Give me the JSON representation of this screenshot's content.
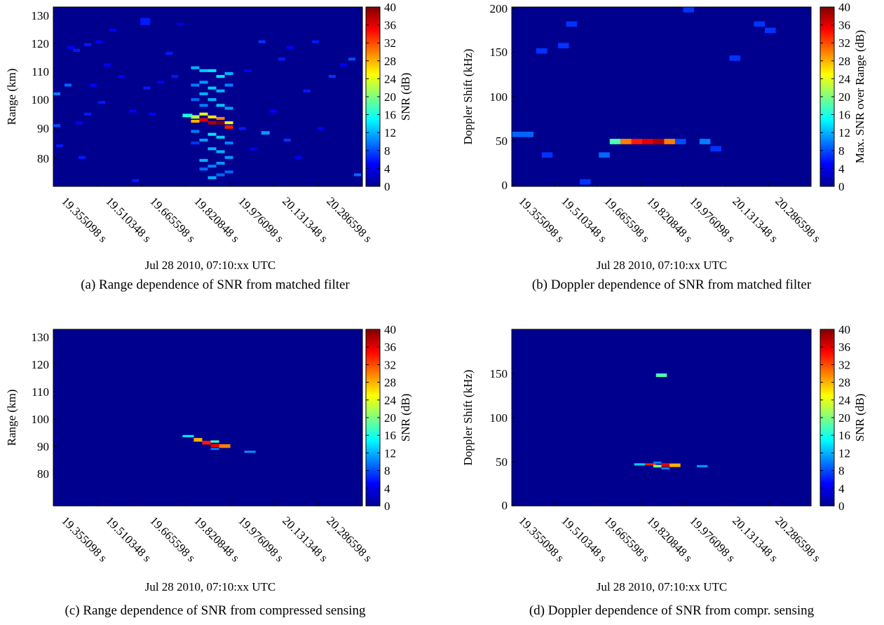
{
  "figure": {
    "colorbar_ticks": [
      "0",
      "4",
      "8",
      "12",
      "16",
      "20",
      "24",
      "28",
      "32",
      "36",
      "40"
    ],
    "colormap": [
      "#00008f",
      "#0000ff",
      "#007fff",
      "#00ffff",
      "#7fff7f",
      "#ffff00",
      "#ff7f00",
      "#ff0000",
      "#7f0000"
    ],
    "background_color": "#00008f"
  },
  "chart_data": [
    {
      "type": "heatmap",
      "caption": "(a) Range dependence of SNR from matched filter",
      "xlabel": "Jul 28 2010, 07:10:xx UTC",
      "ylabel": "Range (km)",
      "colorbar_label": "SNR (dB)",
      "x_ticks": [
        "19.355098 s",
        "19.510348 s",
        "19.665598 s",
        "19.820848 s",
        "19.976098 s",
        "20.131348 s",
        "20.286598 s"
      ],
      "y_ticks": [
        "80",
        "90",
        "100",
        "110",
        "120",
        "130"
      ],
      "xlim": [
        19.2,
        20.3
      ],
      "ylim": [
        70,
        132
      ],
      "clim": [
        0,
        40
      ],
      "cells": [
        {
          "x": 19.2,
          "y": 102,
          "w": 0.025,
          "h": 1.0,
          "v": 10
        },
        {
          "x": 19.2,
          "y": 91,
          "w": 0.025,
          "h": 1.0,
          "v": 8
        },
        {
          "x": 19.21,
          "y": 84,
          "w": 0.025,
          "h": 1.0,
          "v": 6
        },
        {
          "x": 19.24,
          "y": 105,
          "w": 0.025,
          "h": 1.0,
          "v": 9
        },
        {
          "x": 19.25,
          "y": 118,
          "w": 0.025,
          "h": 1.0,
          "v": 5
        },
        {
          "x": 19.27,
          "y": 117,
          "w": 0.025,
          "h": 1.0,
          "v": 6
        },
        {
          "x": 19.28,
          "y": 92,
          "w": 0.025,
          "h": 1.0,
          "v": 5
        },
        {
          "x": 19.29,
          "y": 80,
          "w": 0.025,
          "h": 1.0,
          "v": 6
        },
        {
          "x": 19.31,
          "y": 119,
          "w": 0.025,
          "h": 1.0,
          "v": 6
        },
        {
          "x": 19.31,
          "y": 95,
          "w": 0.025,
          "h": 1.0,
          "v": 6
        },
        {
          "x": 19.33,
          "y": 105,
          "w": 0.025,
          "h": 1.0,
          "v": 5
        },
        {
          "x": 19.35,
          "y": 120,
          "w": 0.025,
          "h": 1.0,
          "v": 5
        },
        {
          "x": 19.36,
          "y": 99,
          "w": 0.025,
          "h": 1.0,
          "v": 6
        },
        {
          "x": 19.38,
          "y": 112,
          "w": 0.025,
          "h": 1.0,
          "v": 5
        },
        {
          "x": 19.4,
          "y": 124,
          "w": 0.025,
          "h": 1.0,
          "v": 5
        },
        {
          "x": 19.43,
          "y": 108,
          "w": 0.025,
          "h": 1.0,
          "v": 5
        },
        {
          "x": 19.47,
          "y": 96,
          "w": 0.025,
          "h": 1.0,
          "v": 5
        },
        {
          "x": 19.48,
          "y": 72,
          "w": 0.025,
          "h": 1.0,
          "v": 6
        },
        {
          "x": 19.51,
          "y": 127,
          "w": 0.035,
          "h": 2.5,
          "v": 6
        },
        {
          "x": 19.52,
          "y": 104,
          "w": 0.025,
          "h": 1.0,
          "v": 6
        },
        {
          "x": 19.54,
          "y": 95,
          "w": 0.025,
          "h": 1.0,
          "v": 5
        },
        {
          "x": 19.57,
          "y": 106,
          "w": 0.025,
          "h": 1.0,
          "v": 5
        },
        {
          "x": 19.6,
          "y": 116,
          "w": 0.025,
          "h": 1.0,
          "v": 6
        },
        {
          "x": 19.62,
          "y": 108,
          "w": 0.025,
          "h": 1.0,
          "v": 6
        },
        {
          "x": 19.64,
          "y": 126,
          "w": 0.025,
          "h": 1.0,
          "v": 4
        },
        {
          "x": 19.66,
          "y": 94.5,
          "w": 0.035,
          "h": 1.2,
          "v": 16
        },
        {
          "x": 19.69,
          "y": 94,
          "w": 0.03,
          "h": 1.2,
          "v": 22
        },
        {
          "x": 19.69,
          "y": 92.5,
          "w": 0.03,
          "h": 1.0,
          "v": 28
        },
        {
          "x": 19.69,
          "y": 111,
          "w": 0.03,
          "h": 1.0,
          "v": 12
        },
        {
          "x": 19.69,
          "y": 105,
          "w": 0.03,
          "h": 1.0,
          "v": 10
        },
        {
          "x": 19.69,
          "y": 100,
          "w": 0.03,
          "h": 1.0,
          "v": 9
        },
        {
          "x": 19.69,
          "y": 89,
          "w": 0.03,
          "h": 1.0,
          "v": 10
        },
        {
          "x": 19.69,
          "y": 85,
          "w": 0.03,
          "h": 1.0,
          "v": 7
        },
        {
          "x": 19.72,
          "y": 93,
          "w": 0.03,
          "h": 1.2,
          "v": 36
        },
        {
          "x": 19.72,
          "y": 95,
          "w": 0.03,
          "h": 1.0,
          "v": 24
        },
        {
          "x": 19.72,
          "y": 110,
          "w": 0.03,
          "h": 1.0,
          "v": 13
        },
        {
          "x": 19.72,
          "y": 106,
          "w": 0.03,
          "h": 1.0,
          "v": 11
        },
        {
          "x": 19.72,
          "y": 102,
          "w": 0.03,
          "h": 1.0,
          "v": 12
        },
        {
          "x": 19.72,
          "y": 98,
          "w": 0.03,
          "h": 1.0,
          "v": 10
        },
        {
          "x": 19.72,
          "y": 86,
          "w": 0.03,
          "h": 1.0,
          "v": 11
        },
        {
          "x": 19.72,
          "y": 79,
          "w": 0.03,
          "h": 1.0,
          "v": 12
        },
        {
          "x": 19.72,
          "y": 76,
          "w": 0.03,
          "h": 1.0,
          "v": 9
        },
        {
          "x": 19.75,
          "y": 92,
          "w": 0.03,
          "h": 1.2,
          "v": 38
        },
        {
          "x": 19.75,
          "y": 94,
          "w": 0.03,
          "h": 1.0,
          "v": 26
        },
        {
          "x": 19.75,
          "y": 110,
          "w": 0.03,
          "h": 1.0,
          "v": 14
        },
        {
          "x": 19.75,
          "y": 104,
          "w": 0.03,
          "h": 1.0,
          "v": 13
        },
        {
          "x": 19.75,
          "y": 100,
          "w": 0.03,
          "h": 1.0,
          "v": 12
        },
        {
          "x": 19.75,
          "y": 88,
          "w": 0.03,
          "h": 1.0,
          "v": 14
        },
        {
          "x": 19.75,
          "y": 83,
          "w": 0.03,
          "h": 1.0,
          "v": 12
        },
        {
          "x": 19.75,
          "y": 77,
          "w": 0.03,
          "h": 1.0,
          "v": 10
        },
        {
          "x": 19.75,
          "y": 73,
          "w": 0.03,
          "h": 1.0,
          "v": 12
        },
        {
          "x": 19.78,
          "y": 92,
          "w": 0.03,
          "h": 1.2,
          "v": 40
        },
        {
          "x": 19.78,
          "y": 93.5,
          "w": 0.03,
          "h": 1.0,
          "v": 30
        },
        {
          "x": 19.78,
          "y": 108,
          "w": 0.03,
          "h": 1.0,
          "v": 14
        },
        {
          "x": 19.78,
          "y": 103,
          "w": 0.03,
          "h": 1.0,
          "v": 12
        },
        {
          "x": 19.78,
          "y": 98,
          "w": 0.03,
          "h": 1.0,
          "v": 13
        },
        {
          "x": 19.78,
          "y": 87,
          "w": 0.03,
          "h": 1.0,
          "v": 13
        },
        {
          "x": 19.78,
          "y": 82,
          "w": 0.03,
          "h": 1.0,
          "v": 12
        },
        {
          "x": 19.78,
          "y": 78,
          "w": 0.03,
          "h": 1.0,
          "v": 11
        },
        {
          "x": 19.78,
          "y": 74,
          "w": 0.03,
          "h": 1.0,
          "v": 9
        },
        {
          "x": 19.81,
          "y": 90.5,
          "w": 0.03,
          "h": 1.2,
          "v": 34
        },
        {
          "x": 19.81,
          "y": 92,
          "w": 0.03,
          "h": 1.0,
          "v": 24
        },
        {
          "x": 19.81,
          "y": 109,
          "w": 0.03,
          "h": 1.0,
          "v": 12
        },
        {
          "x": 19.81,
          "y": 105,
          "w": 0.03,
          "h": 1.0,
          "v": 10
        },
        {
          "x": 19.81,
          "y": 97,
          "w": 0.03,
          "h": 1.0,
          "v": 11
        },
        {
          "x": 19.81,
          "y": 85,
          "w": 0.03,
          "h": 1.0,
          "v": 10
        },
        {
          "x": 19.81,
          "y": 80,
          "w": 0.03,
          "h": 1.0,
          "v": 11
        },
        {
          "x": 19.81,
          "y": 75,
          "w": 0.03,
          "h": 1.0,
          "v": 9
        },
        {
          "x": 19.86,
          "y": 90,
          "w": 0.025,
          "h": 1.0,
          "v": 6
        },
        {
          "x": 19.88,
          "y": 110,
          "w": 0.025,
          "h": 1.0,
          "v": 5
        },
        {
          "x": 19.9,
          "y": 83,
          "w": 0.025,
          "h": 1.0,
          "v": 5
        },
        {
          "x": 19.93,
          "y": 120,
          "w": 0.025,
          "h": 1.0,
          "v": 7
        },
        {
          "x": 19.94,
          "y": 88.5,
          "w": 0.03,
          "h": 1.2,
          "v": 11
        },
        {
          "x": 19.97,
          "y": 96,
          "w": 0.025,
          "h": 1.0,
          "v": 5
        },
        {
          "x": 20.0,
          "y": 114,
          "w": 0.025,
          "h": 1.0,
          "v": 6
        },
        {
          "x": 20.02,
          "y": 86,
          "w": 0.025,
          "h": 1.0,
          "v": 7
        },
        {
          "x": 20.03,
          "y": 118,
          "w": 0.025,
          "h": 1.0,
          "v": 5
        },
        {
          "x": 20.06,
          "y": 80,
          "w": 0.025,
          "h": 1.0,
          "v": 5
        },
        {
          "x": 20.09,
          "y": 103,
          "w": 0.025,
          "h": 1.0,
          "v": 6
        },
        {
          "x": 20.12,
          "y": 120,
          "w": 0.025,
          "h": 1.0,
          "v": 6
        },
        {
          "x": 20.14,
          "y": 90,
          "w": 0.025,
          "h": 1.0,
          "v": 5
        },
        {
          "x": 20.18,
          "y": 108,
          "w": 0.025,
          "h": 1.0,
          "v": 7
        },
        {
          "x": 20.22,
          "y": 112,
          "w": 0.025,
          "h": 1.0,
          "v": 5
        },
        {
          "x": 20.25,
          "y": 114,
          "w": 0.025,
          "h": 1.0,
          "v": 8
        },
        {
          "x": 20.27,
          "y": 74,
          "w": 0.025,
          "h": 1.0,
          "v": 9
        }
      ]
    },
    {
      "type": "heatmap",
      "caption": "(b) Doppler dependence of SNR from matched filter",
      "xlabel": "Jul 28 2010, 07:10:xx UTC",
      "ylabel": "Doppler Shift (kHz)",
      "colorbar_label": "Max. SNR over Range (dB)",
      "x_ticks": [
        "19.355098 s",
        "19.510348 s",
        "19.665598 s",
        "19.820848 s",
        "19.976098 s",
        "20.131348 s",
        "20.286598 s"
      ],
      "y_ticks": [
        "0",
        "50",
        "100",
        "150",
        "200"
      ],
      "xlim": [
        19.2,
        20.3
      ],
      "ylim": [
        0,
        200
      ],
      "clim": [
        0,
        40
      ],
      "cells": [
        {
          "x": 19.2,
          "y": 58,
          "w": 0.04,
          "h": 6,
          "v": 9
        },
        {
          "x": 19.24,
          "y": 58,
          "w": 0.04,
          "h": 6,
          "v": 9
        },
        {
          "x": 19.29,
          "y": 151,
          "w": 0.04,
          "h": 6,
          "v": 7
        },
        {
          "x": 19.31,
          "y": 35,
          "w": 0.04,
          "h": 6,
          "v": 7
        },
        {
          "x": 19.37,
          "y": 157,
          "w": 0.04,
          "h": 6,
          "v": 7
        },
        {
          "x": 19.4,
          "y": 181,
          "w": 0.04,
          "h": 6,
          "v": 7
        },
        {
          "x": 19.45,
          "y": 5,
          "w": 0.04,
          "h": 6,
          "v": 7
        },
        {
          "x": 19.52,
          "y": 35,
          "w": 0.04,
          "h": 6,
          "v": 9
        },
        {
          "x": 19.56,
          "y": 50,
          "w": 0.04,
          "h": 6,
          "v": 18
        },
        {
          "x": 19.6,
          "y": 50,
          "w": 0.04,
          "h": 6,
          "v": 30
        },
        {
          "x": 19.64,
          "y": 50,
          "w": 0.04,
          "h": 6,
          "v": 34
        },
        {
          "x": 19.68,
          "y": 50,
          "w": 0.04,
          "h": 6,
          "v": 36
        },
        {
          "x": 19.72,
          "y": 50,
          "w": 0.04,
          "h": 6,
          "v": 38
        },
        {
          "x": 19.76,
          "y": 50,
          "w": 0.04,
          "h": 6,
          "v": 30
        },
        {
          "x": 19.8,
          "y": 50,
          "w": 0.04,
          "h": 6,
          "v": 8
        },
        {
          "x": 19.83,
          "y": 197,
          "w": 0.04,
          "h": 6,
          "v": 7
        },
        {
          "x": 19.89,
          "y": 50,
          "w": 0.04,
          "h": 6,
          "v": 10
        },
        {
          "x": 19.93,
          "y": 42,
          "w": 0.04,
          "h": 6,
          "v": 7
        },
        {
          "x": 20.0,
          "y": 143,
          "w": 0.04,
          "h": 6,
          "v": 7
        },
        {
          "x": 20.09,
          "y": 181,
          "w": 0.04,
          "h": 6,
          "v": 7
        },
        {
          "x": 20.13,
          "y": 174,
          "w": 0.04,
          "h": 6,
          "v": 7
        }
      ]
    },
    {
      "type": "heatmap",
      "caption": "(c) Range dependence of SNR from compressed sensing",
      "xlabel": "Jul 28 2010, 07:10:xx UTC",
      "ylabel": "Range (km)",
      "colorbar_label": "SNR (dB)",
      "x_ticks": [
        "19.355098 s",
        "19.510348 s",
        "19.665598 s",
        "19.820848 s",
        "19.976098 s",
        "20.131348 s",
        "20.286598 s"
      ],
      "y_ticks": [
        "80",
        "90",
        "100",
        "110",
        "120",
        "130"
      ],
      "xlim": [
        19.2,
        20.3
      ],
      "ylim": [
        70,
        132
      ],
      "clim": [
        0,
        40
      ],
      "cells": [
        {
          "x": 19.66,
          "y": 94.5,
          "w": 0.04,
          "h": 0.8,
          "v": 14
        },
        {
          "x": 19.7,
          "y": 93.2,
          "w": 0.03,
          "h": 1.3,
          "v": 28
        },
        {
          "x": 19.73,
          "y": 92.2,
          "w": 0.03,
          "h": 1.3,
          "v": 34
        },
        {
          "x": 19.76,
          "y": 92.6,
          "w": 0.03,
          "h": 0.8,
          "v": 18
        },
        {
          "x": 19.76,
          "y": 91.2,
          "w": 0.03,
          "h": 1.2,
          "v": 36
        },
        {
          "x": 19.76,
          "y": 90,
          "w": 0.03,
          "h": 0.7,
          "v": 10
        },
        {
          "x": 19.79,
          "y": 91,
          "w": 0.04,
          "h": 1.3,
          "v": 30
        },
        {
          "x": 19.88,
          "y": 89,
          "w": 0.04,
          "h": 0.7,
          "v": 11
        }
      ]
    },
    {
      "type": "heatmap",
      "caption": "(d) Doppler dependence of SNR from compr. sensing",
      "xlabel": "Jul 28 2010, 07:10:xx UTC",
      "ylabel": "Doppler Shift (kHz)",
      "colorbar_label": "SNR (dB)",
      "x_ticks": [
        "19.355098 s",
        "19.510348 s",
        "19.665598 s",
        "19.820848 s",
        "19.976098 s",
        "20.131348 s",
        "20.286598 s"
      ],
      "y_ticks": [
        "0",
        "50",
        "100",
        "150"
      ],
      "xlim": [
        19.2,
        20.3
      ],
      "ylim": [
        0,
        200
      ],
      "clim": [
        0,
        40
      ],
      "cells": [
        {
          "x": 19.65,
          "y": 47,
          "w": 0.04,
          "h": 2.5,
          "v": 13
        },
        {
          "x": 19.69,
          "y": 47,
          "w": 0.04,
          "h": 2.5,
          "v": 34
        },
        {
          "x": 19.72,
          "y": 49,
          "w": 0.03,
          "h": 2.5,
          "v": 10
        },
        {
          "x": 19.72,
          "y": 45,
          "w": 0.03,
          "h": 3,
          "v": 20
        },
        {
          "x": 19.75,
          "y": 46.5,
          "w": 0.03,
          "h": 4,
          "v": 36
        },
        {
          "x": 19.75,
          "y": 42.5,
          "w": 0.03,
          "h": 2.5,
          "v": 10
        },
        {
          "x": 19.78,
          "y": 46,
          "w": 0.04,
          "h": 4,
          "v": 28
        },
        {
          "x": 19.73,
          "y": 148,
          "w": 0.04,
          "h": 4,
          "v": 18
        },
        {
          "x": 19.88,
          "y": 45,
          "w": 0.04,
          "h": 2.5,
          "v": 11
        }
      ]
    }
  ]
}
